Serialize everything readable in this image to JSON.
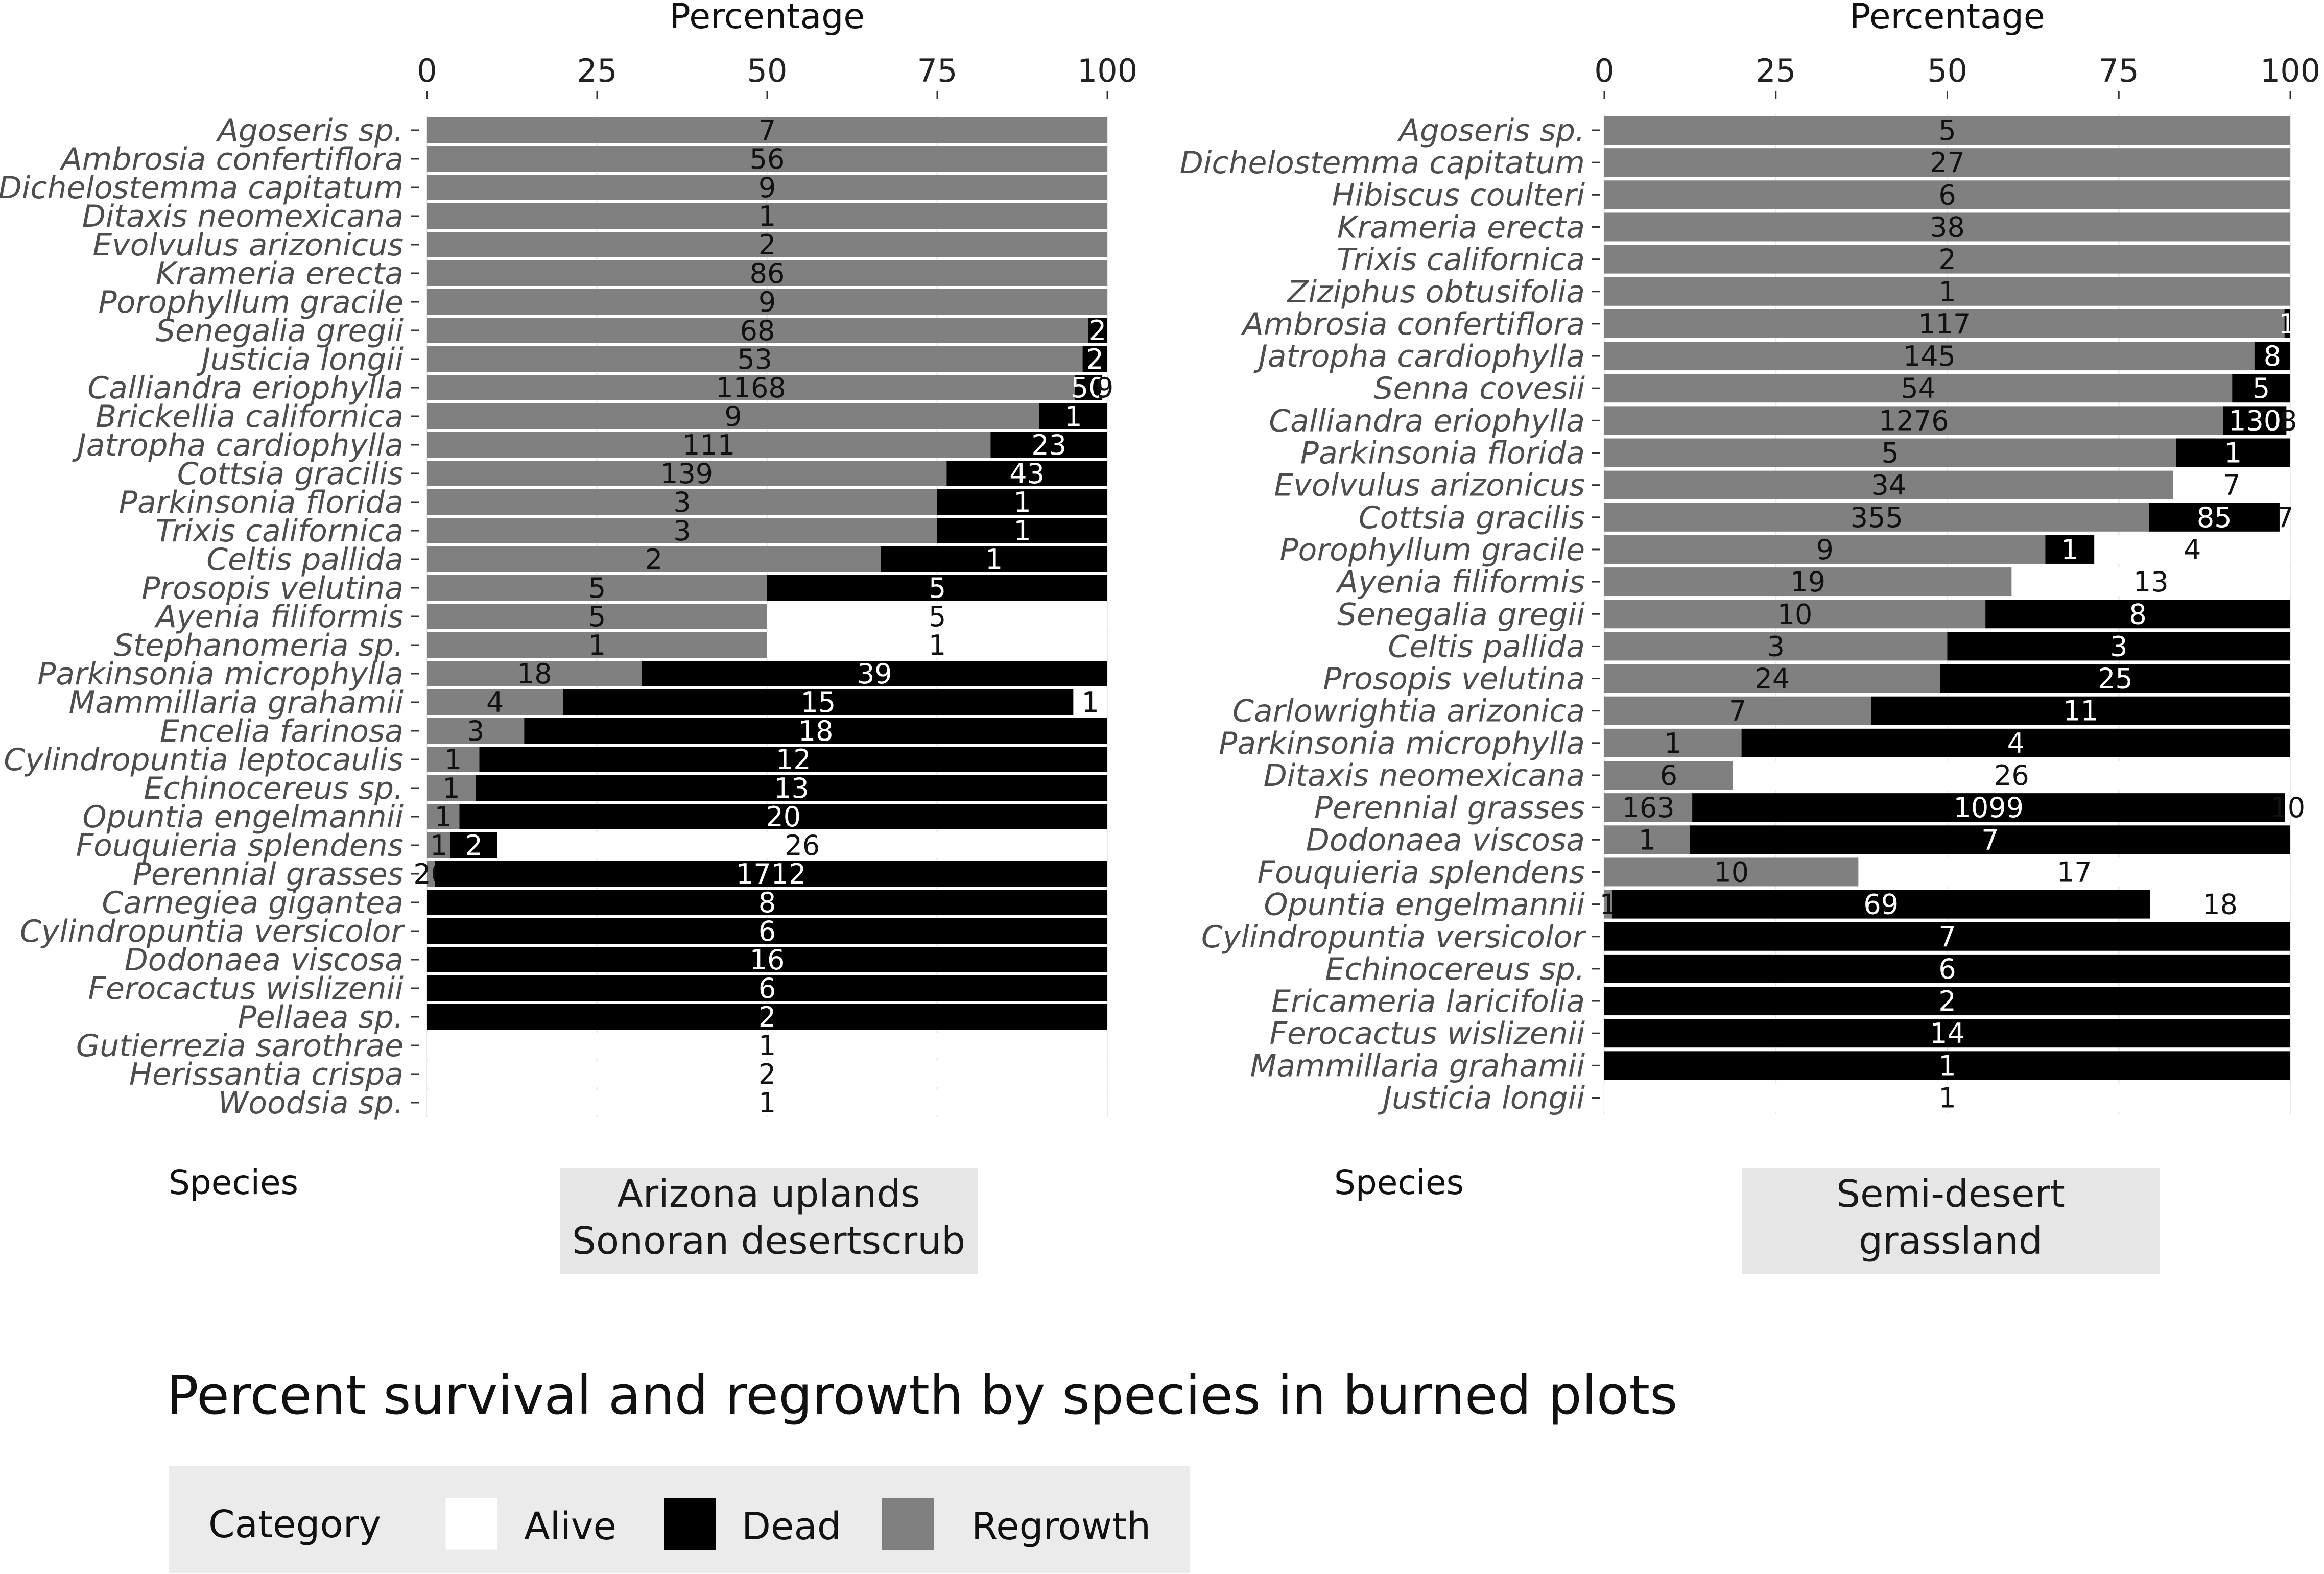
{
  "chart_data": {
    "type": "bar",
    "orientation": "horizontal-stacked-100",
    "title": "Percent survival and regrowth by species in burned plots",
    "xlabel": "Percentage",
    "ylabel": "Species",
    "xlim": [
      0,
      100
    ],
    "x_ticks": [
      "0",
      "25",
      "50",
      "75",
      "100"
    ],
    "legend": {
      "title": "Category",
      "placement": "bottom",
      "items": [
        {
          "name": "Alive",
          "color": "#ffffff"
        },
        {
          "name": "Dead",
          "color": "#000000"
        },
        {
          "name": "Regrowth",
          "color": "#808080"
        }
      ]
    },
    "panels": [
      {
        "facet_label": [
          "Arizona uplands",
          "Sonoran desertscrub"
        ],
        "species": [
          {
            "name": "Agoseris sp.",
            "regrowth": 7,
            "dead": 0,
            "alive": 0
          },
          {
            "name": "Ambrosia confertiflora",
            "regrowth": 56,
            "dead": 0,
            "alive": 0
          },
          {
            "name": "Dichelostemma capitatum",
            "regrowth": 9,
            "dead": 0,
            "alive": 0
          },
          {
            "name": "Ditaxis neomexicana",
            "regrowth": 1,
            "dead": 0,
            "alive": 0
          },
          {
            "name": "Evolvulus arizonicus",
            "regrowth": 2,
            "dead": 0,
            "alive": 0
          },
          {
            "name": "Krameria erecta",
            "regrowth": 86,
            "dead": 0,
            "alive": 0
          },
          {
            "name": "Porophyllum gracile",
            "regrowth": 9,
            "dead": 0,
            "alive": 0
          },
          {
            "name": "Senegalia gregii",
            "regrowth": 68,
            "dead": 2,
            "alive": 0
          },
          {
            "name": "Justicia longii",
            "regrowth": 53,
            "dead": 2,
            "alive": 0
          },
          {
            "name": "Calliandra eriophylla",
            "regrowth": 1168,
            "dead": 50,
            "alive": 9
          },
          {
            "name": "Brickellia californica",
            "regrowth": 9,
            "dead": 1,
            "alive": 0
          },
          {
            "name": "Jatropha cardiophylla",
            "regrowth": 111,
            "dead": 23,
            "alive": 0
          },
          {
            "name": "Cottsia gracilis",
            "regrowth": 139,
            "dead": 43,
            "alive": 0
          },
          {
            "name": "Parkinsonia florida",
            "regrowth": 3,
            "dead": 1,
            "alive": 0
          },
          {
            "name": "Trixis californica",
            "regrowth": 3,
            "dead": 1,
            "alive": 0
          },
          {
            "name": "Celtis pallida",
            "regrowth": 2,
            "dead": 1,
            "alive": 0
          },
          {
            "name": "Prosopis velutina",
            "regrowth": 5,
            "dead": 5,
            "alive": 0
          },
          {
            "name": "Ayenia filiformis",
            "regrowth": 5,
            "dead": 0,
            "alive": 5
          },
          {
            "name": "Stephanomeria sp.",
            "regrowth": 1,
            "dead": 0,
            "alive": 1
          },
          {
            "name": "Parkinsonia microphylla",
            "regrowth": 18,
            "dead": 39,
            "alive": 0
          },
          {
            "name": "Mammillaria grahamii",
            "regrowth": 4,
            "dead": 15,
            "alive": 1
          },
          {
            "name": "Encelia farinosa",
            "regrowth": 3,
            "dead": 18,
            "alive": 0
          },
          {
            "name": "Cylindropuntia leptocaulis",
            "regrowth": 1,
            "dead": 12,
            "alive": 0
          },
          {
            "name": "Echinocereus sp.",
            "regrowth": 1,
            "dead": 13,
            "alive": 0
          },
          {
            "name": "Opuntia engelmannii",
            "regrowth": 1,
            "dead": 20,
            "alive": 0
          },
          {
            "name": "Fouquieria splendens",
            "regrowth": 1,
            "dead": 2,
            "alive": 26
          },
          {
            "name": "Perennial grasses",
            "regrowth": 20,
            "dead": 1712,
            "alive": 0
          },
          {
            "name": "Carnegiea gigantea",
            "regrowth": 0,
            "dead": 8,
            "alive": 0
          },
          {
            "name": "Cylindropuntia versicolor",
            "regrowth": 0,
            "dead": 6,
            "alive": 0
          },
          {
            "name": "Dodonaea viscosa",
            "regrowth": 0,
            "dead": 16,
            "alive": 0
          },
          {
            "name": "Ferocactus wislizenii",
            "regrowth": 0,
            "dead": 6,
            "alive": 0
          },
          {
            "name": "Pellaea sp.",
            "regrowth": 0,
            "dead": 2,
            "alive": 0
          },
          {
            "name": "Gutierrezia sarothrae",
            "regrowth": 0,
            "dead": 0,
            "alive": 1
          },
          {
            "name": "Herissantia crispa",
            "regrowth": 0,
            "dead": 0,
            "alive": 2
          },
          {
            "name": "Woodsia sp.",
            "regrowth": 0,
            "dead": 0,
            "alive": 1
          }
        ]
      },
      {
        "facet_label": [
          "Semi-desert",
          "grassland"
        ],
        "species": [
          {
            "name": "Agoseris sp.",
            "regrowth": 5,
            "dead": 0,
            "alive": 0
          },
          {
            "name": "Dichelostemma capitatum",
            "regrowth": 27,
            "dead": 0,
            "alive": 0
          },
          {
            "name": "Hibiscus coulteri",
            "regrowth": 6,
            "dead": 0,
            "alive": 0
          },
          {
            "name": "Krameria erecta",
            "regrowth": 38,
            "dead": 0,
            "alive": 0
          },
          {
            "name": "Trixis californica",
            "regrowth": 2,
            "dead": 0,
            "alive": 0
          },
          {
            "name": "Ziziphus obtusifolia",
            "regrowth": 1,
            "dead": 0,
            "alive": 0
          },
          {
            "name": "Ambrosia confertiflora",
            "regrowth": 117,
            "dead": 1,
            "alive": 0
          },
          {
            "name": "Jatropha cardiophylla",
            "regrowth": 145,
            "dead": 8,
            "alive": 0
          },
          {
            "name": "Senna covesii",
            "regrowth": 54,
            "dead": 5,
            "alive": 0
          },
          {
            "name": "Calliandra eriophylla",
            "regrowth": 1276,
            "dead": 130,
            "alive": 8
          },
          {
            "name": "Parkinsonia florida",
            "regrowth": 5,
            "dead": 1,
            "alive": 0
          },
          {
            "name": "Evolvulus arizonicus",
            "regrowth": 34,
            "dead": 0,
            "alive": 7
          },
          {
            "name": "Cottsia gracilis",
            "regrowth": 355,
            "dead": 85,
            "alive": 7
          },
          {
            "name": "Porophyllum gracile",
            "regrowth": 9,
            "dead": 1,
            "alive": 4
          },
          {
            "name": "Ayenia filiformis",
            "regrowth": 19,
            "dead": 0,
            "alive": 13
          },
          {
            "name": "Senegalia gregii",
            "regrowth": 10,
            "dead": 8,
            "alive": 0
          },
          {
            "name": "Celtis pallida",
            "regrowth": 3,
            "dead": 3,
            "alive": 0
          },
          {
            "name": "Prosopis velutina",
            "regrowth": 24,
            "dead": 25,
            "alive": 0
          },
          {
            "name": "Carlowrightia arizonica",
            "regrowth": 7,
            "dead": 11,
            "alive": 0
          },
          {
            "name": "Parkinsonia microphylla",
            "regrowth": 1,
            "dead": 4,
            "alive": 0
          },
          {
            "name": "Ditaxis neomexicana",
            "regrowth": 6,
            "dead": 0,
            "alive": 26
          },
          {
            "name": "Perennial grasses",
            "regrowth": 163,
            "dead": 1099,
            "alive": 10
          },
          {
            "name": "Dodonaea viscosa",
            "regrowth": 1,
            "dead": 7,
            "alive": 0
          },
          {
            "name": "Fouquieria splendens",
            "regrowth": 10,
            "dead": 0,
            "alive": 17
          },
          {
            "name": "Opuntia engelmannii",
            "regrowth": 1,
            "dead": 69,
            "alive": 18
          },
          {
            "name": "Cylindropuntia versicolor",
            "regrowth": 0,
            "dead": 7,
            "alive": 0
          },
          {
            "name": "Echinocereus sp.",
            "regrowth": 0,
            "dead": 6,
            "alive": 0
          },
          {
            "name": "Ericameria laricifolia",
            "regrowth": 0,
            "dead": 2,
            "alive": 0
          },
          {
            "name": "Ferocactus wislizenii",
            "regrowth": 0,
            "dead": 14,
            "alive": 0
          },
          {
            "name": "Mammillaria grahamii",
            "regrowth": 0,
            "dead": 1,
            "alive": 0
          },
          {
            "name": "Justicia longii",
            "regrowth": 0,
            "dead": 0,
            "alive": 1
          }
        ]
      }
    ]
  }
}
